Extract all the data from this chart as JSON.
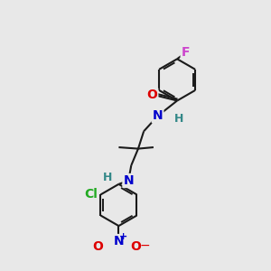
{
  "bg_color": "#e8e8e8",
  "bond_color": "#1a1a1a",
  "atom_colors": {
    "O": "#dd0000",
    "N": "#0000cc",
    "H": "#338888",
    "F": "#cc44cc",
    "Cl": "#22aa22"
  },
  "font_size_atoms": 10,
  "font_size_small": 9,
  "font_size_charge": 8
}
